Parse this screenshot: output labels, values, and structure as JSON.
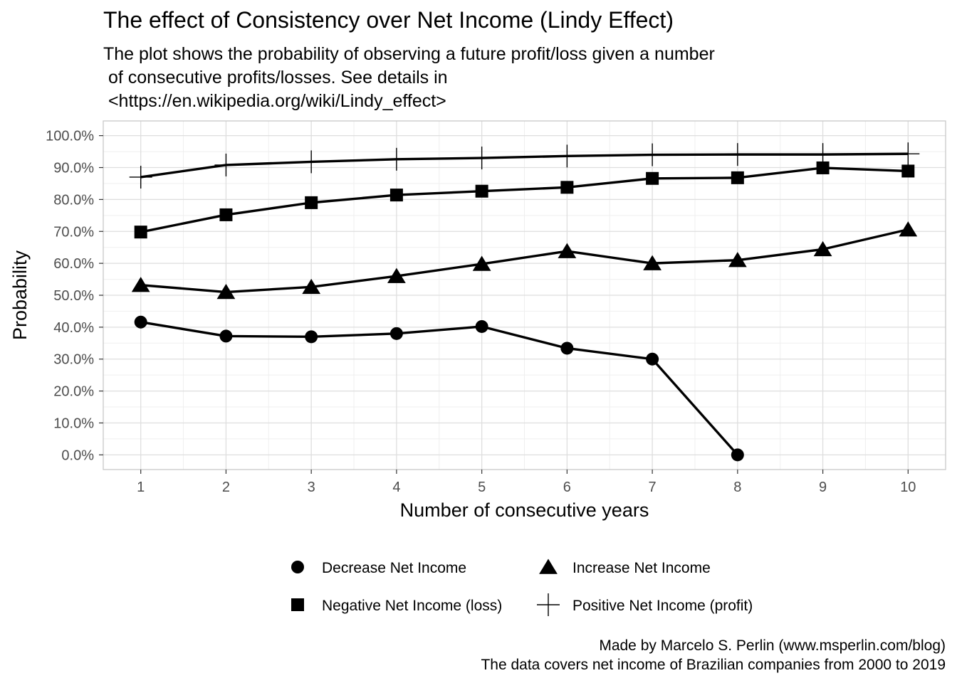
{
  "chart_data": {
    "type": "line",
    "title": "The effect of Consistency over Net Income (Lindy Effect)",
    "subtitle": "The plot shows the probability of observing a future profit/loss given a number\n of consecutive profits/losses. See details in\n <https://en.wikipedia.org/wiki/Lindy_effect>",
    "caption": [
      "Made by Marcelo S. Perlin (www.msperlin.com/blog)",
      "The data covers net income of Brazilian companies from 2000 to 2019"
    ],
    "xlabel": "Number of consecutive years",
    "ylabel": "Probability",
    "x_ticks": [
      1,
      2,
      3,
      4,
      5,
      6,
      7,
      8,
      9,
      10
    ],
    "y_ticks": [
      "0.0%",
      "10.0%",
      "20.0%",
      "30.0%",
      "40.0%",
      "50.0%",
      "60.0%",
      "70.0%",
      "80.0%",
      "90.0%",
      "100.0%"
    ],
    "xlim": [
      0.56,
      10.44
    ],
    "ylim": [
      -4.6,
      104.6
    ],
    "grid": true,
    "legend_position": "bottom",
    "series": [
      {
        "name": "Decrease Net Income",
        "shape": "circle",
        "x": [
          1,
          2,
          3,
          4,
          5,
          6,
          7,
          8
        ],
        "y": [
          41.6,
          37.2,
          37.0,
          38.0,
          40.2,
          33.4,
          30.0,
          0.0
        ]
      },
      {
        "name": "Increase Net Income",
        "shape": "triangle",
        "x": [
          1,
          2,
          3,
          4,
          5,
          6,
          7,
          8,
          9,
          10
        ],
        "y": [
          53.2,
          51.0,
          52.6,
          56.0,
          59.8,
          63.8,
          60.0,
          61.0,
          64.4,
          70.6
        ]
      },
      {
        "name": "Negative Net Income (loss)",
        "shape": "square",
        "x": [
          1,
          2,
          3,
          4,
          5,
          6,
          7,
          8,
          9,
          10
        ],
        "y": [
          69.8,
          75.2,
          79.0,
          81.4,
          82.6,
          83.8,
          86.6,
          86.8,
          89.9,
          88.9
        ]
      },
      {
        "name": "Positive Net Income (profit)",
        "shape": "cross",
        "x": [
          1,
          2,
          3,
          4,
          5,
          6,
          7,
          8,
          9,
          10
        ],
        "y": [
          87.0,
          90.8,
          91.8,
          92.6,
          93.0,
          93.6,
          94.0,
          94.1,
          94.1,
          94.3
        ]
      }
    ],
    "colors": {
      "line": "#000000",
      "grid_major": "#dedede",
      "grid_minor": "#efefef",
      "panel_border": "#c8c8c8",
      "tick_text": "#4d4d4d"
    }
  }
}
